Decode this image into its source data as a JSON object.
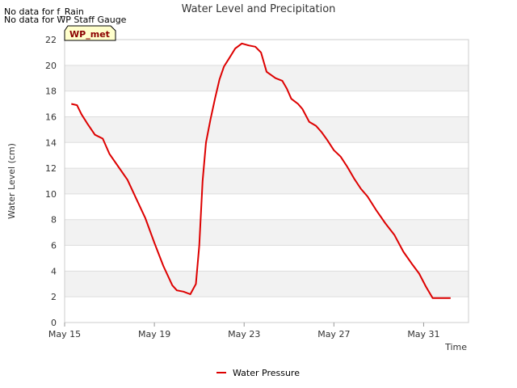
{
  "notes": [
    "No data for f_Rain",
    "No data for WP Staff Gauge"
  ],
  "badge": "WP_met",
  "chart_data": {
    "type": "line",
    "title": "Water Level and Precipitation",
    "xlabel": "Time",
    "ylabel": "Water Level (cm)",
    "x_tick_labels": [
      "May 15",
      "May 19",
      "May 23",
      "May 27",
      "May 31"
    ],
    "x_tick_days": [
      0,
      4,
      8,
      12,
      16
    ],
    "x_range_days": [
      0,
      18
    ],
    "ylim": [
      0,
      22
    ],
    "y_ticks": [
      0,
      2,
      4,
      6,
      8,
      10,
      12,
      14,
      16,
      18,
      20,
      22
    ],
    "grid": "horizontal bands",
    "legend_position": "bottom-center",
    "series": [
      {
        "name": "Water Pressure",
        "color": "#dd0000",
        "x_days": [
          0.3,
          0.55,
          0.75,
          1.0,
          1.35,
          1.7,
          2.0,
          2.4,
          2.8,
          3.2,
          3.6,
          4.0,
          4.4,
          4.8,
          5.0,
          5.3,
          5.6,
          5.85,
          6.0,
          6.15,
          6.3,
          6.5,
          6.7,
          6.9,
          7.1,
          7.35,
          7.6,
          7.9,
          8.2,
          8.5,
          8.75,
          9.0,
          9.4,
          9.7,
          9.9,
          10.1,
          10.4,
          10.6,
          10.9,
          11.2,
          11.45,
          11.7,
          12.0,
          12.3,
          12.6,
          12.9,
          13.2,
          13.5,
          13.9,
          14.3,
          14.7,
          15.1,
          15.5,
          15.8,
          16.1,
          16.4,
          16.7,
          17.0,
          17.2
        ],
        "values": [
          17.0,
          16.9,
          16.2,
          15.5,
          14.6,
          14.3,
          13.1,
          12.1,
          11.1,
          9.6,
          8.1,
          6.2,
          4.4,
          2.9,
          2.5,
          2.4,
          2.2,
          3.0,
          6.0,
          11.0,
          14.0,
          15.8,
          17.4,
          18.9,
          19.9,
          20.6,
          21.3,
          21.7,
          21.55,
          21.45,
          21.0,
          19.5,
          19.0,
          18.8,
          18.2,
          17.4,
          17.0,
          16.6,
          15.6,
          15.3,
          14.8,
          14.2,
          13.4,
          12.9,
          12.1,
          11.2,
          10.4,
          9.8,
          8.7,
          7.7,
          6.8,
          5.5,
          4.5,
          3.8,
          2.8,
          1.9,
          1.9,
          1.9,
          1.9
        ]
      }
    ]
  }
}
